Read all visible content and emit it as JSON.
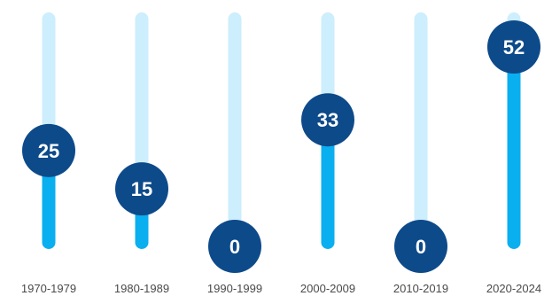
{
  "chart_data": {
    "type": "bar",
    "title": "",
    "xlabel": "",
    "ylabel": "",
    "categories": [
      "1970-1979",
      "1980-1989",
      "1990-1999",
      "2000-2009",
      "2010-2019",
      "2020-2024"
    ],
    "values": [
      25,
      15,
      0,
      33,
      0,
      52
    ],
    "data_labels": [
      "25",
      "15",
      "0",
      "33",
      "0",
      "52"
    ],
    "ylim": [
      0,
      52
    ],
    "grid": false,
    "legend": "none",
    "colors": {
      "track": "#cdeefc",
      "fill": "#0aaff0",
      "bubble": "#0d4a8a",
      "bubble_text": "#ffffff",
      "category_text": "#4a4a4a"
    }
  }
}
